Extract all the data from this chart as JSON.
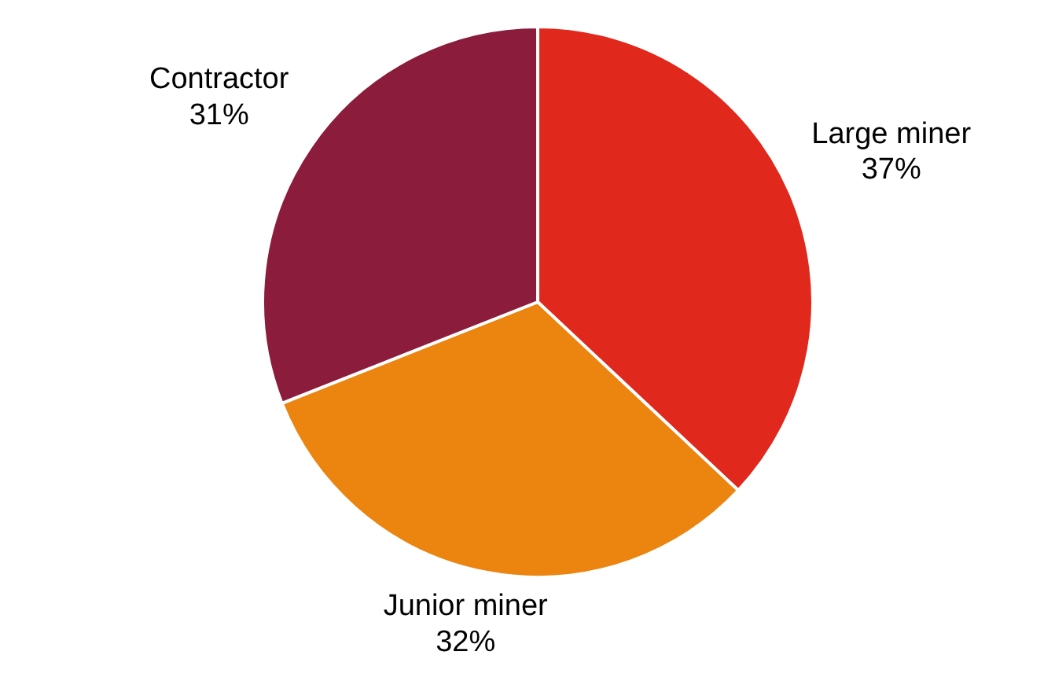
{
  "chart_data": {
    "type": "pie",
    "categories": [
      "Large miner",
      "Junior miner",
      "Contractor"
    ],
    "values": [
      37,
      32,
      31
    ],
    "colors": [
      "#e0281c",
      "#ec8410",
      "#8c1c3c"
    ],
    "value_labels": [
      "37%",
      "32%",
      "31%"
    ]
  }
}
